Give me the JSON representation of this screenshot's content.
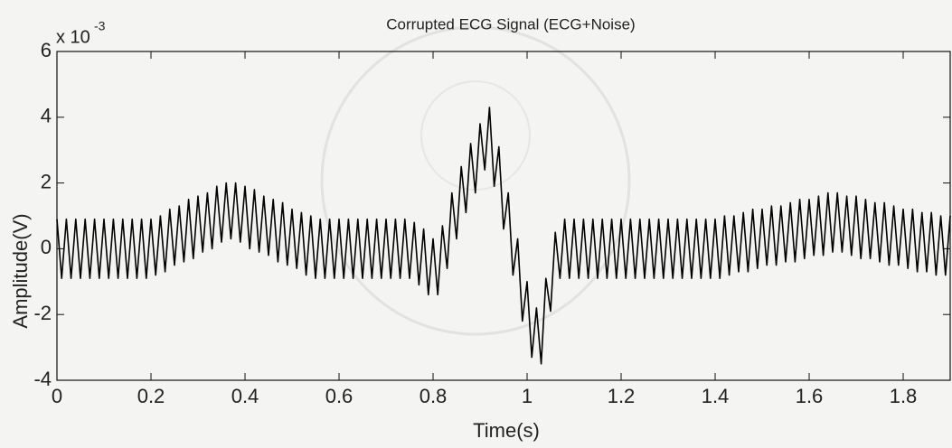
{
  "chart_data": {
    "type": "line",
    "title": "Corrupted ECG Signal (ECG+Noise)",
    "xlabel": "Time(s)",
    "ylabel": "Amplitude(V)",
    "y_multiplier": "x 10",
    "y_multiplier_exponent": "-3",
    "xlim": [
      0,
      1.9
    ],
    "ylim": [
      -4,
      6
    ],
    "xticks": [
      0,
      0.2,
      0.4,
      0.6,
      0.8,
      1,
      1.2,
      1.4,
      1.6,
      1.8
    ],
    "yticks": [
      -4,
      -2,
      0,
      2,
      4,
      6
    ],
    "grid": false,
    "series": [
      {
        "color": "#000000",
        "x": [
          0,
          0.01,
          0.02,
          0.03,
          0.04,
          0.05,
          0.06,
          0.07,
          0.08,
          0.09,
          0.1,
          0.11,
          0.12,
          0.13,
          0.14,
          0.15,
          0.16,
          0.17,
          0.18,
          0.19,
          0.2,
          0.21,
          0.22,
          0.23,
          0.24,
          0.25,
          0.26,
          0.27,
          0.28,
          0.29,
          0.3,
          0.31,
          0.32,
          0.33,
          0.34,
          0.35,
          0.36,
          0.37,
          0.38,
          0.39,
          0.4,
          0.41,
          0.42,
          0.43,
          0.44,
          0.45,
          0.46,
          0.47,
          0.48,
          0.49,
          0.5,
          0.51,
          0.52,
          0.53,
          0.54,
          0.55,
          0.56,
          0.57,
          0.58,
          0.59,
          0.6,
          0.61,
          0.62,
          0.63,
          0.64,
          0.65,
          0.66,
          0.67,
          0.68,
          0.69,
          0.7,
          0.71,
          0.72,
          0.73,
          0.74,
          0.75,
          0.76,
          0.77,
          0.78,
          0.79,
          0.8,
          0.81,
          0.82,
          0.83,
          0.84,
          0.85,
          0.86,
          0.87,
          0.88,
          0.89,
          0.9,
          0.91,
          0.92,
          0.93,
          0.94,
          0.95,
          0.96,
          0.97,
          0.98,
          0.99,
          1,
          1.01,
          1.02,
          1.03,
          1.04,
          1.05,
          1.06,
          1.07,
          1.08,
          1.09,
          1.1,
          1.11,
          1.12,
          1.13,
          1.14,
          1.15,
          1.16,
          1.17,
          1.18,
          1.19,
          1.2,
          1.21,
          1.22,
          1.23,
          1.24,
          1.25,
          1.26,
          1.27,
          1.28,
          1.29,
          1.3,
          1.31,
          1.32,
          1.33,
          1.34,
          1.35,
          1.36,
          1.37,
          1.38,
          1.39,
          1.4,
          1.41,
          1.42,
          1.43,
          1.44,
          1.45,
          1.46,
          1.47,
          1.48,
          1.49,
          1.5,
          1.51,
          1.52,
          1.53,
          1.54,
          1.55,
          1.56,
          1.57,
          1.58,
          1.59,
          1.6,
          1.61,
          1.62,
          1.63,
          1.64,
          1.65,
          1.66,
          1.67,
          1.68,
          1.69,
          1.7,
          1.71,
          1.72,
          1.73,
          1.74,
          1.75,
          1.76,
          1.77,
          1.78,
          1.79,
          1.8,
          1.81,
          1.82,
          1.83,
          1.84,
          1.85,
          1.86,
          1.87,
          1.88,
          1.89,
          1.9
        ],
        "values": [
          0.9,
          -0.9,
          0.9,
          -0.9,
          0.9,
          -0.9,
          0.9,
          -0.9,
          0.9,
          -0.9,
          0.9,
          -0.9,
          0.9,
          -0.9,
          0.9,
          -0.9,
          0.9,
          -0.9,
          0.9,
          -0.9,
          0.9,
          -0.8,
          1.0,
          -0.7,
          1.2,
          -0.5,
          1.3,
          -0.4,
          1.5,
          -0.3,
          1.6,
          -0.1,
          1.7,
          0.0,
          1.9,
          0.2,
          2.0,
          0.3,
          2.0,
          0.2,
          1.9,
          0.0,
          1.8,
          -0.1,
          1.6,
          -0.2,
          1.5,
          -0.4,
          1.4,
          -0.5,
          1.2,
          -0.6,
          1.1,
          -0.8,
          1.0,
          -0.9,
          0.9,
          -0.9,
          0.9,
          -0.9,
          0.9,
          -0.9,
          0.9,
          -0.9,
          0.9,
          -0.9,
          0.9,
          -0.9,
          0.9,
          -0.9,
          0.9,
          -0.9,
          0.9,
          -0.9,
          0.9,
          -0.9,
          0.8,
          -1.1,
          0.6,
          -1.4,
          0.3,
          -1.4,
          0.7,
          -0.6,
          1.7,
          0.3,
          2.5,
          1.1,
          3.2,
          1.7,
          3.8,
          2.4,
          4.3,
          1.9,
          3.1,
          0.6,
          1.7,
          -0.8,
          0.3,
          -2.2,
          -1.0,
          -3.3,
          -1.8,
          -3.5,
          -0.9,
          -1.9,
          0.5,
          -0.9,
          0.9,
          -0.9,
          0.9,
          -0.9,
          0.9,
          -0.9,
          0.9,
          -0.9,
          0.9,
          -0.9,
          0.9,
          -0.9,
          0.9,
          -0.9,
          0.9,
          -0.9,
          0.9,
          -0.9,
          0.9,
          -0.9,
          0.9,
          -0.9,
          0.9,
          -0.9,
          0.9,
          -0.9,
          0.9,
          -0.9,
          0.9,
          -0.9,
          0.9,
          -0.9,
          0.9,
          -0.9,
          1.0,
          -0.8,
          1.0,
          -0.7,
          1.1,
          -0.7,
          1.2,
          -0.6,
          1.2,
          -0.5,
          1.3,
          -0.5,
          1.3,
          -0.4,
          1.4,
          -0.4,
          1.5,
          -0.3,
          1.5,
          -0.2,
          1.6,
          -0.2,
          1.7,
          -0.1,
          1.7,
          -0.1,
          1.6,
          -0.2,
          1.6,
          -0.3,
          1.5,
          -0.3,
          1.4,
          -0.4,
          1.4,
          -0.5,
          1.3,
          -0.5,
          1.2,
          -0.6,
          1.2,
          -0.7,
          1.1,
          -0.7,
          1.1,
          -0.8,
          1.0,
          -0.8,
          1.0
        ]
      }
    ]
  }
}
